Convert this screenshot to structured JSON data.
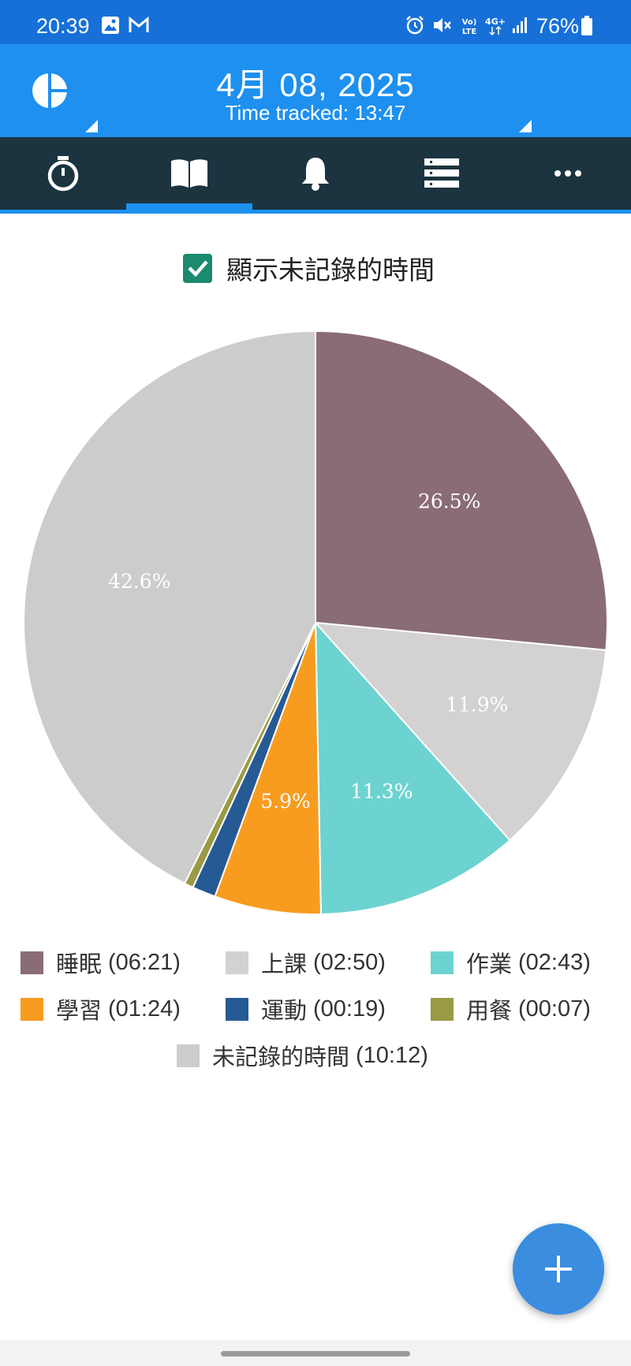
{
  "status_bar": {
    "time": "20:39",
    "battery": "76%",
    "icons": [
      "image-icon",
      "gmail-icon",
      "alarm-icon",
      "mute-icon",
      "volte-icon",
      "4g-icon",
      "signal-icon",
      "battery-icon"
    ]
  },
  "header": {
    "date": "4月 08, 2025",
    "tracked": "Time tracked: 13:47",
    "background": "#1e90f0"
  },
  "tabs": [
    {
      "name": "timer",
      "icon": "stopwatch-icon",
      "selected": false
    },
    {
      "name": "log",
      "icon": "book-icon",
      "selected": true
    },
    {
      "name": "reminders",
      "icon": "bell-icon",
      "selected": false
    },
    {
      "name": "categories",
      "icon": "list-icon",
      "selected": false
    },
    {
      "name": "more",
      "icon": "more-icon",
      "selected": false
    }
  ],
  "toggle": {
    "label": "顯示未記錄的時間",
    "checked": true,
    "color": "#1b8a6f"
  },
  "chart_data": {
    "type": "pie",
    "slices": [
      {
        "label": "睡眠",
        "value": 26.5,
        "display": "26.5%",
        "color": "#8a6b78"
      },
      {
        "label": "上課",
        "value": 11.9,
        "display": "11.9%",
        "color": "#d3d1d2"
      },
      {
        "label": "作業",
        "value": 11.3,
        "display": "11.3%",
        "color": "#6dd3d0"
      },
      {
        "label": "學習",
        "value": 5.9,
        "display": "5.9%",
        "color": "#f89c20"
      },
      {
        "label": "運動",
        "value": 1.3,
        "display": "",
        "color": "#265a95"
      },
      {
        "label": "用餐",
        "value": 0.5,
        "display": "",
        "color": "#9a9a45"
      },
      {
        "label": "未記錄的時間",
        "value": 42.6,
        "display": "42.6%",
        "color": "#cccccc"
      }
    ],
    "legend": [
      {
        "name": "睡眠",
        "time": "(06:21)",
        "color": "#8a6b78"
      },
      {
        "name": "上課",
        "time": "(02:50)",
        "color": "#d3d1d2"
      },
      {
        "name": "作業",
        "time": "(02:43)",
        "color": "#6dd3d0"
      },
      {
        "name": "學習",
        "time": "(01:24)",
        "color": "#f89c20"
      },
      {
        "name": "運動",
        "time": "(00:19)",
        "color": "#265a95"
      },
      {
        "name": "用餐",
        "time": "(00:07)",
        "color": "#9a9a45"
      },
      {
        "name": "未記錄的時間",
        "time": "(10:12)",
        "color": "#cccccc"
      }
    ],
    "legend_placement": "bottom"
  },
  "fab": {
    "label": "+",
    "icon": "plus-icon",
    "color": "#3a8ddf"
  }
}
